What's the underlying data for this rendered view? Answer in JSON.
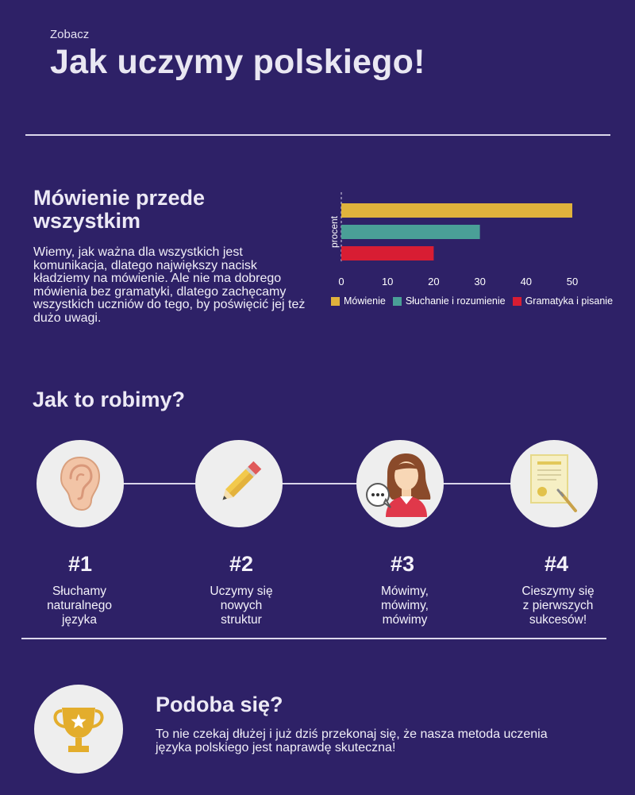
{
  "header": {
    "kicker": "Zobacz",
    "title": "Jak uczymy polskiego!"
  },
  "speaking": {
    "title": "Mówienie przede wszystkim",
    "text": "Wiemy, jak ważna dla wszystkich jest komunikacja, dlatego największy nacisk kładziemy na mówienie. Ale nie ma dobrego mówienia bez gramatyki, dlatego zachęcamy wszystkich uczniów do tego, by poświęcić jej też dużo uwagi."
  },
  "chart_data": {
    "type": "bar",
    "orientation": "horizontal",
    "ylabel": "procent",
    "xlim": [
      0,
      50
    ],
    "ticks": [
      0,
      10,
      20,
      30,
      40,
      50
    ],
    "grid": false,
    "legend_position": "bottom",
    "series": [
      {
        "name": "Mówienie",
        "value": 50,
        "color": "#e0b23c"
      },
      {
        "name": "Słuchanie i rozumienie",
        "value": 30,
        "color": "#4a9f97"
      },
      {
        "name": "Gramatyka i pisanie",
        "value": 20,
        "color": "#d81d33"
      }
    ]
  },
  "how": {
    "title": "Jak to robimy?",
    "steps": [
      {
        "number": "#1",
        "line1": "Słuchamy",
        "line2": "naturalnego",
        "line3": "języka",
        "icon": "ear-icon"
      },
      {
        "number": "#2",
        "line1": "Uczymy się",
        "line2": "nowych",
        "line3": "struktur",
        "icon": "pencil-icon"
      },
      {
        "number": "#3",
        "line1": "Mówimy,",
        "line2": "mówimy,",
        "line3": "mówimy",
        "icon": "speaking-person-icon"
      },
      {
        "number": "#4",
        "line1": "Cieszymy się",
        "line2": "z pierwszych",
        "line3": "sukcesów!",
        "icon": "certificate-icon"
      }
    ]
  },
  "like": {
    "title": "Podoba się?",
    "text": "To nie czekaj dłużej i już dziś przekonaj się, że nasza metoda uczenia języka polskiego jest naprawdę skuteczna!",
    "icon": "trophy-icon"
  }
}
